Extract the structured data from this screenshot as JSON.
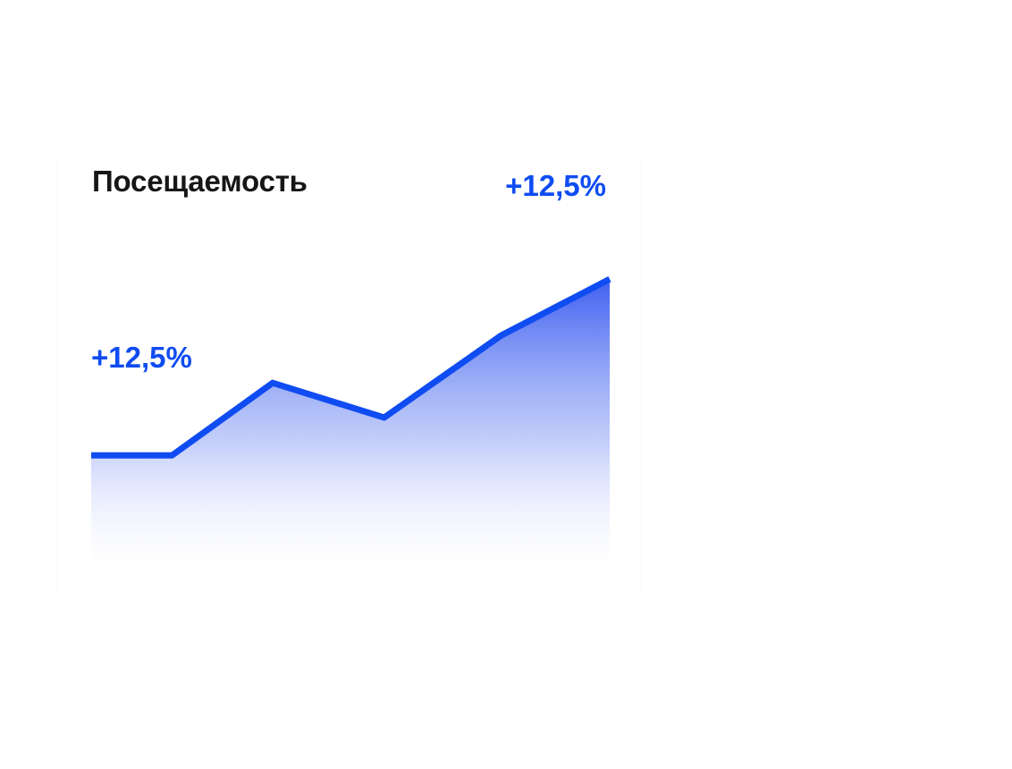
{
  "card": {
    "title": "Посещаемость",
    "change_top": "+12,5%",
    "change_inline": "+12,5%"
  },
  "colors": {
    "accent": "#0f4cf2",
    "title": "#161616",
    "background": "#ffffff"
  },
  "chart_data": {
    "type": "area",
    "title": "Посещаемость",
    "xlabel": "",
    "ylabel": "",
    "x": [
      0,
      1,
      2,
      3,
      4,
      5
    ],
    "values": [
      40,
      40,
      63,
      52,
      78,
      96
    ],
    "ylim": [
      0,
      100
    ],
    "grid": false,
    "axes_visible": false
  }
}
